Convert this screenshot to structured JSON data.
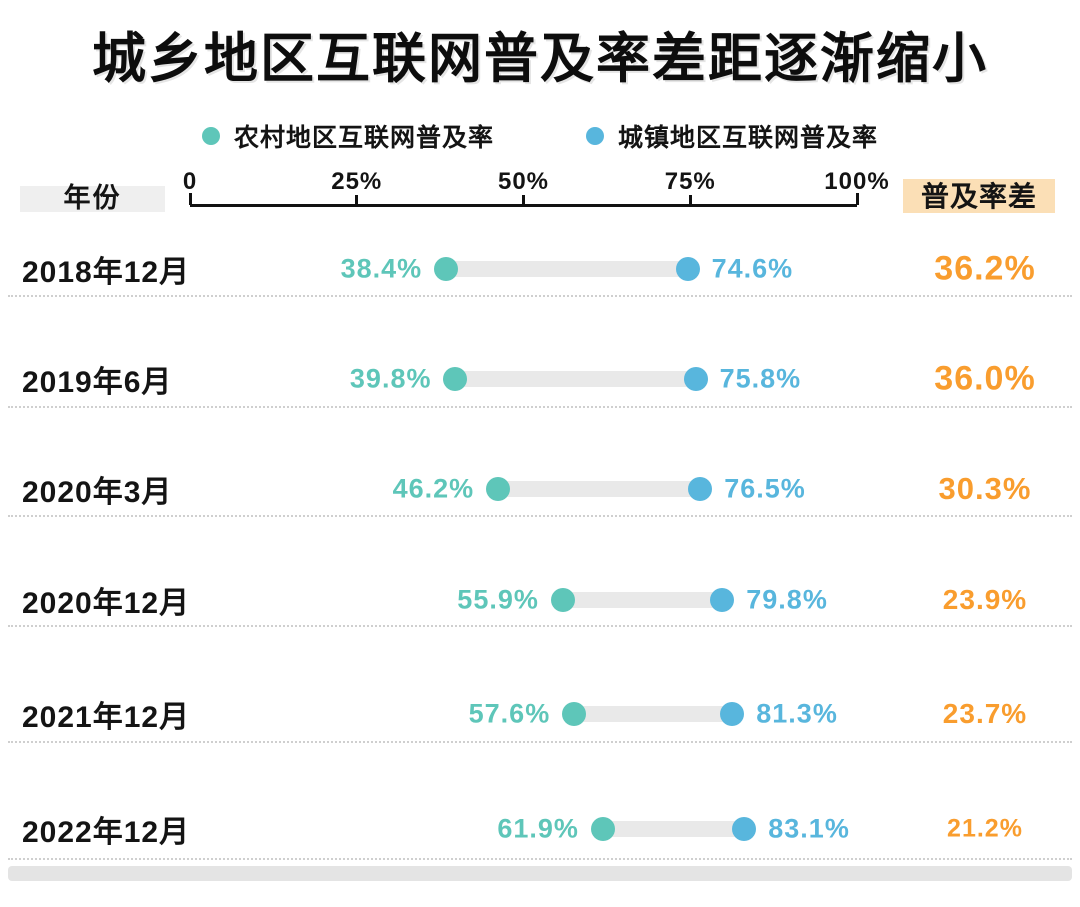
{
  "title": "城乡地区互联网普及率差距逐渐缩小",
  "legend": [
    {
      "label": "农村地区互联网普及率",
      "color": "#5ec6b9"
    },
    {
      "label": "城镇地区互联网普及率",
      "color": "#58b6dd"
    }
  ],
  "table_header": {
    "year": "年份",
    "diff": "普及率差"
  },
  "axis": {
    "tick_labels": [
      "0",
      "25%",
      "50%",
      "75%",
      "100%"
    ],
    "tick_values": [
      0,
      25,
      50,
      75,
      100
    ]
  },
  "rows": [
    {
      "year": "2018年12月",
      "rural": "38.4%",
      "urban": "74.6%",
      "diff": "36.2%"
    },
    {
      "year": "2019年6月",
      "rural": "39.8%",
      "urban": "75.8%",
      "diff": "36.0%"
    },
    {
      "year": "2020年3月",
      "rural": "46.2%",
      "urban": "76.5%",
      "diff": "30.3%"
    },
    {
      "year": "2020年12月",
      "rural": "55.9%",
      "urban": "79.8%",
      "diff": "23.9%"
    },
    {
      "year": "2021年12月",
      "rural": "57.6%",
      "urban": "81.3%",
      "diff": "23.7%"
    },
    {
      "year": "2022年12月",
      "rural": "61.9%",
      "urban": "83.1%",
      "diff": "21.2%"
    }
  ],
  "chart_data": {
    "type": "dumbbell",
    "title": "城乡地区互联网普及率差距逐渐缩小",
    "categories": [
      "2018年12月",
      "2019年6月",
      "2020年3月",
      "2020年12月",
      "2021年12月",
      "2022年12月"
    ],
    "series": [
      {
        "name": "农村地区互联网普及率",
        "color": "#5ec6b9",
        "values": [
          38.4,
          39.8,
          46.2,
          55.9,
          57.6,
          61.9
        ]
      },
      {
        "name": "城镇地区互联网普及率",
        "color": "#58b6dd",
        "values": [
          74.6,
          75.8,
          76.5,
          79.8,
          81.3,
          83.1
        ]
      }
    ],
    "diff_column": {
      "label": "普及率差",
      "color": "#f99d2e",
      "values": [
        36.2,
        36.0,
        30.3,
        23.9,
        23.7,
        21.2
      ]
    },
    "value_suffix": "%",
    "xlim": [
      0,
      100
    ],
    "xticks": [
      "0",
      "25%",
      "50%",
      "75%",
      "100%"
    ],
    "grid": false,
    "legend_position": "top"
  },
  "colors": {
    "rural": "#5ec6b9",
    "urban": "#58b6dd",
    "diff_text": "#f99d2e",
    "diff_header_bg": "#fbdfb6",
    "year_header_bg": "#efefef",
    "connector_bar": "#e9e9e9",
    "axis": "#111111",
    "separator": "#cfcfcf",
    "footer_bar": "#e4e4e4"
  }
}
